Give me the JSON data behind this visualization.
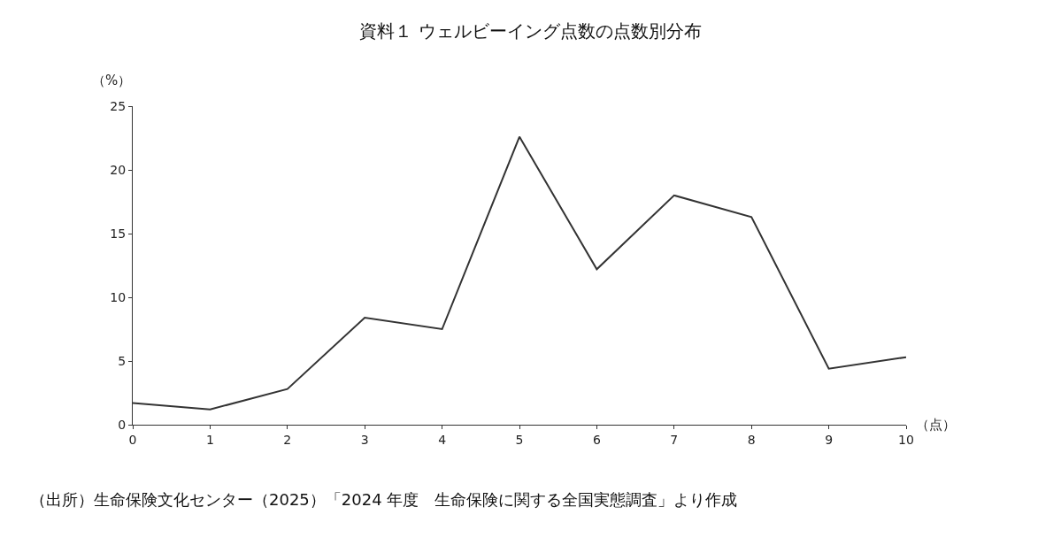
{
  "chart_data": {
    "type": "line",
    "title": "資料１ ウェルビーイング点数の点数別分布",
    "xlabel": "（点）",
    "ylabel": "（%）",
    "x": [
      0,
      1,
      2,
      3,
      4,
      5,
      6,
      7,
      8,
      9,
      10
    ],
    "series": [
      {
        "color": "#333333",
        "values": [
          1.7,
          1.2,
          2.8,
          8.4,
          7.5,
          22.6,
          12.2,
          18.0,
          16.3,
          4.4,
          5.3
        ]
      }
    ],
    "xlim": [
      0,
      10
    ],
    "xticks": [
      0,
      1,
      2,
      3,
      4,
      5,
      6,
      7,
      8,
      9,
      10
    ],
    "ylim": [
      0,
      25
    ],
    "yticks": [
      0,
      5,
      10,
      15,
      20,
      25
    ],
    "marker": "none",
    "line_style": "solid",
    "annotations": [
      "（出所）生命保険文化センター（2025）「2024 年度　生命保険に関する全国実態調査」より作成"
    ]
  }
}
